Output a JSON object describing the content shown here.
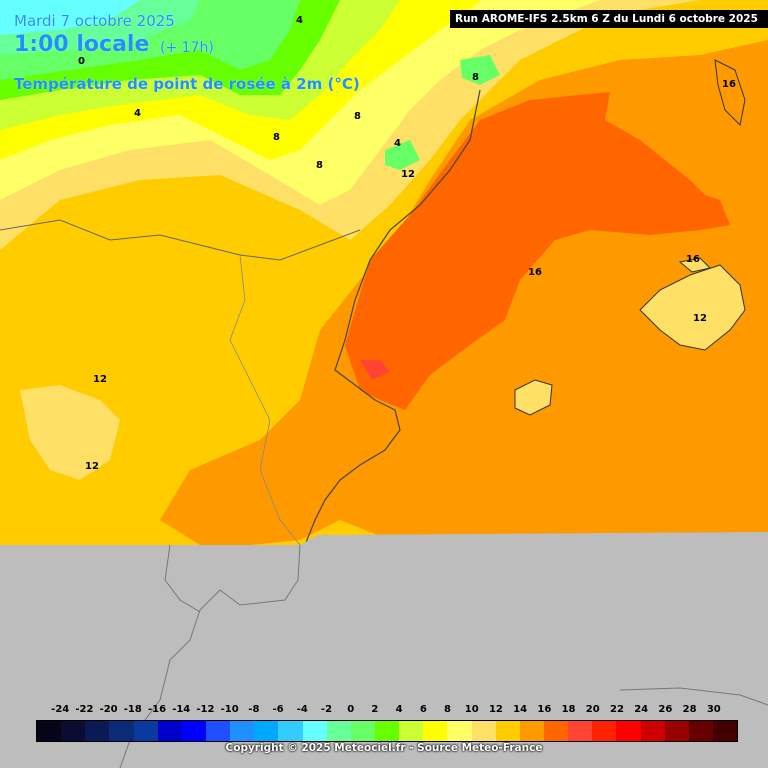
{
  "header": {
    "date": "Mardi 7 octobre 2025",
    "local_time": "1:00 locale",
    "offset": "(+ 17h)",
    "variable": "Température de point de rosée à 2m (°C)"
  },
  "run_info": "Run AROME-IFS 2.5km 6 Z du Lundi 6 octobre 2025",
  "copyright": "Copyright © 2025 Meteociel.fr - Source Meteo-France",
  "legend": {
    "ticks": [
      "-24",
      "-22",
      "-20",
      "-18",
      "-16",
      "-14",
      "-12",
      "-10",
      "-8",
      "-6",
      "-4",
      "-2",
      "0",
      "2",
      "4",
      "6",
      "8",
      "10",
      "12",
      "14",
      "16",
      "18",
      "20",
      "22",
      "24",
      "26",
      "28",
      "30"
    ],
    "colors": [
      "#05051a",
      "#0b0b33",
      "#0a1a55",
      "#0b2a77",
      "#0a3aa0",
      "#0000cc",
      "#0000ff",
      "#1e50ff",
      "#1e90ff",
      "#00a8ff",
      "#33ccff",
      "#66ffff",
      "#66ff99",
      "#66ff66",
      "#66ff00",
      "#ccff33",
      "#ffff00",
      "#ffff66",
      "#ffe066",
      "#ffcc00",
      "#ff9900",
      "#ff6600",
      "#ff4433",
      "#ff2200",
      "#ff0000",
      "#cc0000",
      "#990000",
      "#660000",
      "#440000"
    ]
  },
  "contour_labels": [
    {
      "text": "4"
    },
    {
      "text": "4"
    },
    {
      "text": "4"
    },
    {
      "text": "0"
    },
    {
      "text": "8"
    },
    {
      "text": "8"
    },
    {
      "text": "8"
    },
    {
      "text": "8"
    },
    {
      "text": "12"
    },
    {
      "text": "12"
    },
    {
      "text": "12"
    },
    {
      "text": "12"
    },
    {
      "text": "16"
    },
    {
      "text": "16"
    },
    {
      "text": "16"
    }
  ]
}
